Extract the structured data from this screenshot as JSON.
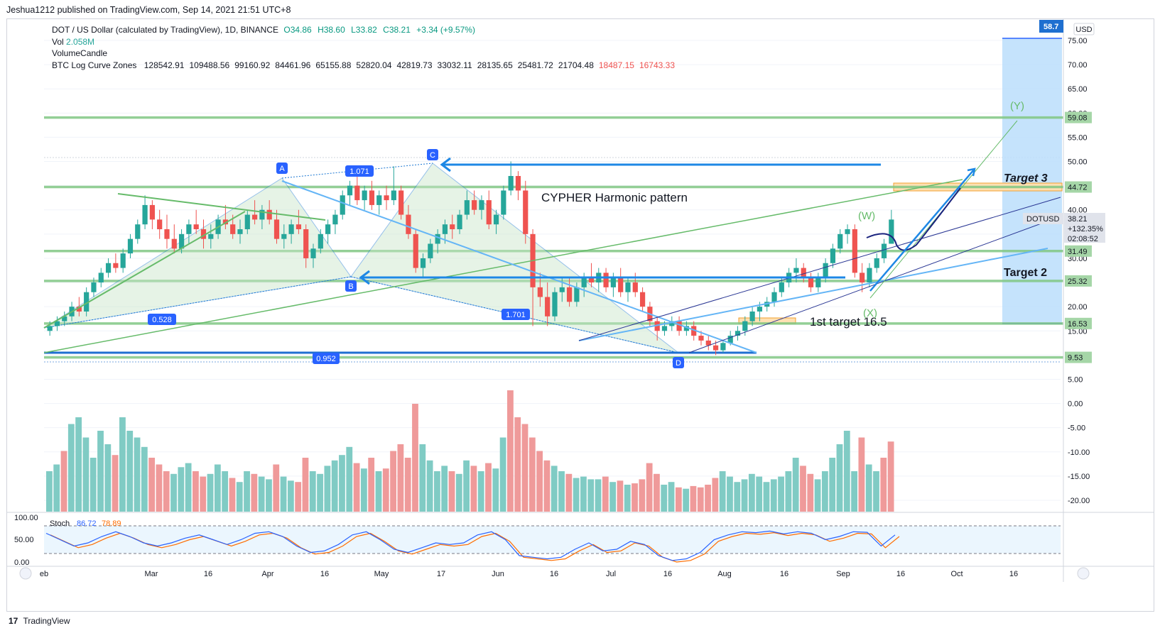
{
  "publisher": "Jeshua1212 published on TradingView.com, Sep 14, 2021 21:51 UTC+8",
  "header": {
    "symbol_line": "DOT / US Dollar (calculated by TradingView), 1D, BINANCE",
    "ohlc": {
      "o": "O34.86",
      "h": "H38.60",
      "l": "L33.82",
      "c": "C38.21",
      "chg": "+3.34 (+9.57%)"
    },
    "vol_label": "Vol",
    "vol_value": "2.058M",
    "indicator_1": "VolumeCandle",
    "zones_label": "BTC Log Curve Zones",
    "zones_values": [
      "128542.91",
      "109488.56",
      "99160.92",
      "84461.96",
      "65155.88",
      "52820.04",
      "42819.73",
      "33032.11",
      "28135.65",
      "25481.72",
      "21704.48"
    ],
    "zones_values_red": [
      "18487.15",
      "16743.33"
    ]
  },
  "footer": {
    "logo": "17",
    "brand": "TradingView"
  },
  "chart_data": {
    "type": "candlestick",
    "symbol": "DOTUSD",
    "currency": "USD",
    "price_badge_top": "58.7",
    "price_tag": {
      "symbol": "DOTUSD",
      "price": "38.21",
      "change": "+132.35%",
      "countdown": "02:08:52"
    },
    "y_axis": {
      "ticks": [
        "75.00",
        "70.00",
        "65.00",
        "60.00",
        "55.00",
        "50.00",
        "45.00",
        "40.00",
        "35.00",
        "30.00",
        "25.00",
        "20.00",
        "15.00",
        "10.00",
        "5.00",
        "0.00",
        "-5.00",
        "-10.00",
        "-15.00",
        "-20.00"
      ],
      "tick_values": [
        75,
        70,
        65,
        60,
        55,
        50,
        45,
        40,
        35,
        30,
        25,
        20,
        15,
        10,
        5,
        0,
        -5,
        -10,
        -15,
        -20
      ]
    },
    "x_axis": {
      "ticks": [
        "eb",
        "Mar",
        "16",
        "Apr",
        "16",
        "May",
        "17",
        "Jun",
        "16",
        "Jul",
        "16",
        "Aug",
        "16",
        "Sep",
        "16",
        "Oct",
        "16"
      ]
    },
    "levels": [
      {
        "label": "59.08",
        "value": 59.08
      },
      {
        "label": "44.72",
        "value": 44.72
      },
      {
        "label": "31.49",
        "value": 31.49
      },
      {
        "label": "25.32",
        "value": 25.32
      },
      {
        "label": "16.53",
        "value": 16.53
      },
      {
        "label": "9.53",
        "value": 9.53
      }
    ],
    "harmonic_points": [
      {
        "label": "A",
        "value": 46.5
      },
      {
        "label": "B",
        "value": 25.5
      },
      {
        "label": "C",
        "value": 50.0
      },
      {
        "label": "D",
        "value": 10.2
      }
    ],
    "ratios": [
      "1.071",
      "0.528",
      "1.701",
      "0.952"
    ],
    "annotations": [
      "CYPHER Harmonic pattern",
      "1st target 16.5",
      "Target 2",
      "Target 3",
      "(W)",
      "(X)",
      "(Y)"
    ],
    "candles": [
      [
        15,
        17,
        14,
        16
      ],
      [
        16,
        18,
        15,
        17
      ],
      [
        17,
        19,
        16,
        18
      ],
      [
        18,
        21,
        17,
        20
      ],
      [
        20,
        22,
        18,
        19
      ],
      [
        19,
        24,
        18,
        23
      ],
      [
        23,
        26,
        22,
        25
      ],
      [
        25,
        28,
        24,
        27
      ],
      [
        27,
        30,
        26,
        29
      ],
      [
        29,
        31,
        27,
        28
      ],
      [
        28,
        32,
        27,
        31
      ],
      [
        31,
        35,
        30,
        34
      ],
      [
        34,
        38,
        33,
        37
      ],
      [
        37,
        43,
        36,
        41
      ],
      [
        41,
        42,
        36,
        38
      ],
      [
        38,
        40,
        34,
        36
      ],
      [
        36,
        39,
        32,
        34
      ],
      [
        34,
        37,
        31,
        32
      ],
      [
        32,
        36,
        31,
        35
      ],
      [
        35,
        38,
        33,
        37
      ],
      [
        37,
        40,
        35,
        36
      ],
      [
        36,
        38,
        32,
        34
      ],
      [
        34,
        37,
        32,
        35
      ],
      [
        35,
        39,
        34,
        38
      ],
      [
        38,
        41,
        36,
        37
      ],
      [
        37,
        39,
        34,
        35
      ],
      [
        35,
        38,
        33,
        36
      ],
      [
        36,
        40,
        35,
        39
      ],
      [
        39,
        42,
        37,
        38
      ],
      [
        38,
        41,
        36,
        40
      ],
      [
        40,
        42,
        37,
        38
      ],
      [
        38,
        40,
        33,
        34
      ],
      [
        34,
        37,
        32,
        35
      ],
      [
        35,
        38,
        33,
        37
      ],
      [
        37,
        40,
        35,
        36
      ],
      [
        36,
        37,
        28,
        30
      ],
      [
        30,
        33,
        28,
        32
      ],
      [
        32,
        36,
        31,
        35
      ],
      [
        35,
        38,
        33,
        37
      ],
      [
        37,
        40,
        35,
        39
      ],
      [
        39,
        44,
        38,
        43
      ],
      [
        43,
        46,
        41,
        45
      ],
      [
        45,
        47,
        41,
        42
      ],
      [
        42,
        45,
        40,
        44
      ],
      [
        44,
        46,
        40,
        41
      ],
      [
        41,
        44,
        39,
        43
      ],
      [
        43,
        45,
        40,
        42
      ],
      [
        42,
        49,
        41,
        44
      ],
      [
        44,
        45,
        38,
        39
      ],
      [
        39,
        41,
        34,
        35
      ],
      [
        35,
        36,
        27,
        28
      ],
      [
        28,
        31,
        26,
        30
      ],
      [
        30,
        34,
        29,
        33
      ],
      [
        33,
        36,
        31,
        35
      ],
      [
        35,
        38,
        33,
        37
      ],
      [
        37,
        39,
        34,
        36
      ],
      [
        36,
        40,
        35,
        39
      ],
      [
        39,
        44,
        38,
        42
      ],
      [
        42,
        44,
        39,
        40
      ],
      [
        40,
        43,
        38,
        42
      ],
      [
        42,
        44,
        36,
        37
      ],
      [
        37,
        40,
        35,
        39
      ],
      [
        39,
        45,
        38,
        44
      ],
      [
        44,
        50,
        43,
        47
      ],
      [
        47,
        48,
        42,
        44
      ],
      [
        44,
        46,
        33,
        35
      ],
      [
        35,
        36,
        16,
        24
      ],
      [
        24,
        27,
        20,
        22
      ],
      [
        22,
        25,
        16,
        18
      ],
      [
        18,
        24,
        17,
        23
      ],
      [
        23,
        26,
        21,
        24
      ],
      [
        24,
        26,
        20,
        21
      ],
      [
        21,
        25,
        20,
        24
      ],
      [
        24,
        27,
        22,
        26
      ],
      [
        26,
        29,
        24,
        25
      ],
      [
        25,
        28,
        23,
        27
      ],
      [
        27,
        28,
        23,
        24
      ],
      [
        24,
        27,
        22,
        26
      ],
      [
        26,
        28,
        22,
        23
      ],
      [
        23,
        26,
        21,
        25
      ],
      [
        25,
        27,
        22,
        23
      ],
      [
        23,
        24,
        19,
        20
      ],
      [
        20,
        21,
        16,
        17
      ],
      [
        17,
        18,
        13,
        15
      ],
      [
        15,
        17,
        14,
        16
      ],
      [
        16,
        18,
        15,
        17
      ],
      [
        17,
        18,
        14,
        15
      ],
      [
        15,
        17,
        14,
        16
      ],
      [
        16,
        17,
        13,
        14
      ],
      [
        14,
        15,
        12,
        13
      ],
      [
        13,
        14,
        11,
        12
      ],
      [
        12,
        13,
        10,
        11
      ],
      [
        11,
        13,
        10.5,
        12.5
      ],
      [
        12.5,
        15,
        12,
        14
      ],
      [
        14,
        16,
        13,
        15
      ],
      [
        15,
        18,
        14,
        17
      ],
      [
        17,
        20,
        16,
        19
      ],
      [
        19,
        21,
        17,
        20
      ],
      [
        20,
        22,
        19,
        21
      ],
      [
        21,
        24,
        20,
        23
      ],
      [
        23,
        26,
        22,
        25
      ],
      [
        25,
        28,
        24,
        27
      ],
      [
        27,
        30,
        25,
        28
      ],
      [
        28,
        29,
        25,
        26
      ],
      [
        26,
        27,
        23,
        24
      ],
      [
        24,
        27,
        23,
        26
      ],
      [
        26,
        30,
        25,
        29
      ],
      [
        29,
        33,
        28,
        32
      ],
      [
        32,
        36,
        31,
        35
      ],
      [
        35,
        37,
        33,
        36
      ],
      [
        36,
        37,
        26,
        27
      ],
      [
        27,
        29,
        23,
        25
      ],
      [
        25,
        29,
        24,
        28
      ],
      [
        28,
        31,
        27,
        30
      ],
      [
        30,
        34,
        29,
        33
      ],
      [
        33,
        40,
        33,
        38
      ]
    ],
    "volume": [
      [
        30,
        1
      ],
      [
        35,
        1
      ],
      [
        45,
        0
      ],
      [
        65,
        1
      ],
      [
        70,
        1
      ],
      [
        55,
        1
      ],
      [
        40,
        1
      ],
      [
        60,
        1
      ],
      [
        50,
        1
      ],
      [
        42,
        0
      ],
      [
        70,
        1
      ],
      [
        60,
        1
      ],
      [
        55,
        1
      ],
      [
        48,
        1
      ],
      [
        40,
        0
      ],
      [
        35,
        0
      ],
      [
        30,
        0
      ],
      [
        28,
        1
      ],
      [
        33,
        1
      ],
      [
        36,
        1
      ],
      [
        30,
        0
      ],
      [
        26,
        0
      ],
      [
        28,
        1
      ],
      [
        35,
        1
      ],
      [
        30,
        1
      ],
      [
        25,
        0
      ],
      [
        22,
        1
      ],
      [
        30,
        1
      ],
      [
        28,
        0
      ],
      [
        26,
        1
      ],
      [
        24,
        1
      ],
      [
        35,
        0
      ],
      [
        26,
        1
      ],
      [
        23,
        1
      ],
      [
        22,
        0
      ],
      [
        40,
        0
      ],
      [
        30,
        1
      ],
      [
        28,
        1
      ],
      [
        34,
        1
      ],
      [
        38,
        1
      ],
      [
        42,
        1
      ],
      [
        48,
        1
      ],
      [
        36,
        0
      ],
      [
        32,
        1
      ],
      [
        40,
        0
      ],
      [
        30,
        1
      ],
      [
        32,
        0
      ],
      [
        45,
        0
      ],
      [
        50,
        0
      ],
      [
        40,
        0
      ],
      [
        80,
        0
      ],
      [
        50,
        1
      ],
      [
        38,
        1
      ],
      [
        30,
        1
      ],
      [
        34,
        1
      ],
      [
        30,
        0
      ],
      [
        28,
        1
      ],
      [
        38,
        1
      ],
      [
        34,
        0
      ],
      [
        30,
        1
      ],
      [
        36,
        0
      ],
      [
        32,
        1
      ],
      [
        55,
        1
      ],
      [
        90,
        0
      ],
      [
        70,
        0
      ],
      [
        65,
        0
      ],
      [
        55,
        0
      ],
      [
        45,
        0
      ],
      [
        38,
        0
      ],
      [
        34,
        1
      ],
      [
        30,
        1
      ],
      [
        28,
        0
      ],
      [
        25,
        1
      ],
      [
        26,
        1
      ],
      [
        24,
        1
      ],
      [
        24,
        1
      ],
      [
        26,
        0
      ],
      [
        22,
        1
      ],
      [
        23,
        0
      ],
      [
        20,
        1
      ],
      [
        21,
        0
      ],
      [
        24,
        0
      ],
      [
        36,
        0
      ],
      [
        28,
        0
      ],
      [
        20,
        1
      ],
      [
        22,
        1
      ],
      [
        18,
        0
      ],
      [
        17,
        1
      ],
      [
        19,
        0
      ],
      [
        18,
        0
      ],
      [
        20,
        0
      ],
      [
        25,
        0
      ],
      [
        30,
        1
      ],
      [
        26,
        1
      ],
      [
        22,
        1
      ],
      [
        24,
        1
      ],
      [
        28,
        1
      ],
      [
        26,
        1
      ],
      [
        22,
        1
      ],
      [
        24,
        1
      ],
      [
        26,
        1
      ],
      [
        30,
        1
      ],
      [
        40,
        1
      ],
      [
        34,
        0
      ],
      [
        28,
        0
      ],
      [
        24,
        1
      ],
      [
        30,
        1
      ],
      [
        40,
        1
      ],
      [
        50,
        1
      ],
      [
        60,
        1
      ],
      [
        30,
        1
      ],
      [
        55,
        0
      ],
      [
        35,
        1
      ],
      [
        30,
        1
      ],
      [
        40,
        0
      ],
      [
        52,
        0
      ]
    ],
    "stoch": {
      "label": "Stoch",
      "k": "86.72",
      "d": "78.89",
      "ticks": [
        "100.00",
        "50.00",
        "0.00"
      ]
    }
  }
}
